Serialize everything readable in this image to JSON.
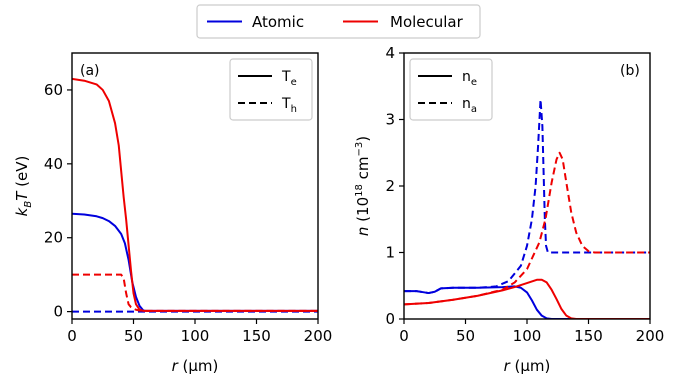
{
  "legend_top": [
    {
      "label": "Atomic",
      "color": "#0000dd"
    },
    {
      "label": "Molecular",
      "color": "#ee0000"
    }
  ],
  "chart_data": [
    {
      "type": "line",
      "panel_label": "(a)",
      "xlabel": "r (μm)",
      "ylabel": "k_B T (eV)",
      "xlim": [
        0,
        200
      ],
      "ylim": [
        -2,
        70
      ],
      "xticks": [
        0,
        50,
        100,
        150,
        200
      ],
      "yticks": [
        0,
        20,
        40,
        60
      ],
      "legend": {
        "placement": "top-right",
        "entries": [
          {
            "label": "T",
            "sub": "e",
            "style": "solid"
          },
          {
            "label": "T",
            "sub": "h",
            "style": "dashed"
          }
        ]
      },
      "series": [
        {
          "group": "Atomic",
          "quantity": "Te",
          "color": "#0000dd",
          "style": "solid",
          "points": [
            [
              0,
              26.5
            ],
            [
              10,
              26.3
            ],
            [
              20,
              25.8
            ],
            [
              25,
              25.3
            ],
            [
              30,
              24.5
            ],
            [
              35,
              23.2
            ],
            [
              40,
              21
            ],
            [
              43,
              18.5
            ],
            [
              46,
              14
            ],
            [
              49,
              8
            ],
            [
              52,
              4
            ],
            [
              55,
              1.5
            ],
            [
              58,
              0.3
            ],
            [
              60,
              0.2
            ],
            [
              100,
              0.2
            ],
            [
              150,
              0.2
            ],
            [
              200,
              0.2
            ]
          ]
        },
        {
          "group": "Atomic",
          "quantity": "Th",
          "color": "#0000dd",
          "style": "dashed",
          "points": [
            [
              0,
              0
            ],
            [
              200,
              0
            ]
          ]
        },
        {
          "group": "Molecular",
          "quantity": "Te",
          "color": "#ee0000",
          "style": "solid",
          "points": [
            [
              0,
              63
            ],
            [
              10,
              62.5
            ],
            [
              20,
              61.5
            ],
            [
              25,
              60
            ],
            [
              30,
              57
            ],
            [
              35,
              51
            ],
            [
              38,
              45
            ],
            [
              40,
              38
            ],
            [
              42,
              31
            ],
            [
              44,
              25
            ],
            [
              46,
              18
            ],
            [
              48,
              11
            ],
            [
              50,
              5
            ],
            [
              52,
              2
            ],
            [
              55,
              0.5
            ],
            [
              58,
              0.2
            ],
            [
              100,
              0.2
            ],
            [
              150,
              0.2
            ],
            [
              200,
              0.2
            ]
          ]
        },
        {
          "group": "Molecular",
          "quantity": "Th",
          "color": "#ee0000",
          "style": "dashed",
          "points": [
            [
              0,
              10
            ],
            [
              40,
              10
            ],
            [
              42,
              9
            ],
            [
              44,
              5
            ],
            [
              46,
              2
            ],
            [
              48,
              1.2
            ],
            [
              50,
              0.8
            ],
            [
              52,
              0.5
            ],
            [
              55,
              0.3
            ],
            [
              60,
              0.2
            ],
            [
              100,
              0.2
            ],
            [
              150,
              0.2
            ],
            [
              200,
              0.2
            ]
          ]
        }
      ]
    },
    {
      "type": "line",
      "panel_label": "(b)",
      "xlabel": "r (μm)",
      "ylabel": "n (10^18 cm^-3)",
      "xlim": [
        0,
        200
      ],
      "ylim": [
        0,
        4
      ],
      "xticks": [
        0,
        50,
        100,
        150,
        200
      ],
      "yticks": [
        0,
        1,
        2,
        3,
        4
      ],
      "legend": {
        "placement": "top-left",
        "entries": [
          {
            "label": "n",
            "sub": "e",
            "style": "solid"
          },
          {
            "label": "n",
            "sub": "a",
            "style": "dashed"
          }
        ]
      },
      "series": [
        {
          "group": "Atomic",
          "quantity": "ne",
          "color": "#0000dd",
          "style": "solid",
          "points": [
            [
              0,
              0.42
            ],
            [
              10,
              0.42
            ],
            [
              20,
              0.39
            ],
            [
              25,
              0.41
            ],
            [
              30,
              0.46
            ],
            [
              40,
              0.47
            ],
            [
              60,
              0.47
            ],
            [
              80,
              0.48
            ],
            [
              90,
              0.49
            ],
            [
              95,
              0.47
            ],
            [
              100,
              0.4
            ],
            [
              104,
              0.28
            ],
            [
              108,
              0.14
            ],
            [
              112,
              0.05
            ],
            [
              116,
              0.01
            ],
            [
              120,
              0
            ],
            [
              200,
              0
            ]
          ]
        },
        {
          "group": "Atomic",
          "quantity": "na",
          "color": "#0000dd",
          "style": "dashed",
          "points": [
            [
              0,
              0.42
            ],
            [
              10,
              0.42
            ],
            [
              20,
              0.39
            ],
            [
              25,
              0.41
            ],
            [
              30,
              0.46
            ],
            [
              40,
              0.47
            ],
            [
              60,
              0.47
            ],
            [
              75,
              0.49
            ],
            [
              85,
              0.57
            ],
            [
              95,
              0.8
            ],
            [
              100,
              1.1
            ],
            [
              104,
              1.5
            ],
            [
              107,
              2
            ],
            [
              109,
              2.6
            ],
            [
              111,
              3.3
            ],
            [
              112.5,
              2.9
            ],
            [
              113.5,
              2.2
            ],
            [
              114.5,
              1.5
            ],
            [
              115.5,
              1.1
            ],
            [
              117,
              1.0
            ],
            [
              130,
              1
            ],
            [
              160,
              1
            ],
            [
              200,
              1
            ]
          ]
        },
        {
          "group": "Molecular",
          "quantity": "ne",
          "color": "#ee0000",
          "style": "solid",
          "points": [
            [
              0,
              0.22
            ],
            [
              20,
              0.24
            ],
            [
              40,
              0.29
            ],
            [
              60,
              0.35
            ],
            [
              80,
              0.43
            ],
            [
              90,
              0.48
            ],
            [
              100,
              0.54
            ],
            [
              108,
              0.59
            ],
            [
              112,
              0.59
            ],
            [
              116,
              0.55
            ],
            [
              120,
              0.44
            ],
            [
              124,
              0.3
            ],
            [
              128,
              0.15
            ],
            [
              132,
              0.05
            ],
            [
              136,
              0.01
            ],
            [
              140,
              0
            ],
            [
              200,
              0
            ]
          ]
        },
        {
          "group": "Molecular",
          "quantity": "na",
          "color": "#ee0000",
          "style": "dashed",
          "points": [
            [
              0,
              0.22
            ],
            [
              20,
              0.24
            ],
            [
              40,
              0.29
            ],
            [
              60,
              0.35
            ],
            [
              80,
              0.44
            ],
            [
              90,
              0.55
            ],
            [
              100,
              0.75
            ],
            [
              110,
              1.15
            ],
            [
              115,
              1.5
            ],
            [
              120,
              2.05
            ],
            [
              124,
              2.4
            ],
            [
              126.5,
              2.5
            ],
            [
              129,
              2.4
            ],
            [
              132,
              2.05
            ],
            [
              136,
              1.6
            ],
            [
              140,
              1.3
            ],
            [
              145,
              1.1
            ],
            [
              150,
              1.02
            ],
            [
              155,
              1.0
            ],
            [
              200,
              1
            ]
          ]
        }
      ]
    }
  ]
}
